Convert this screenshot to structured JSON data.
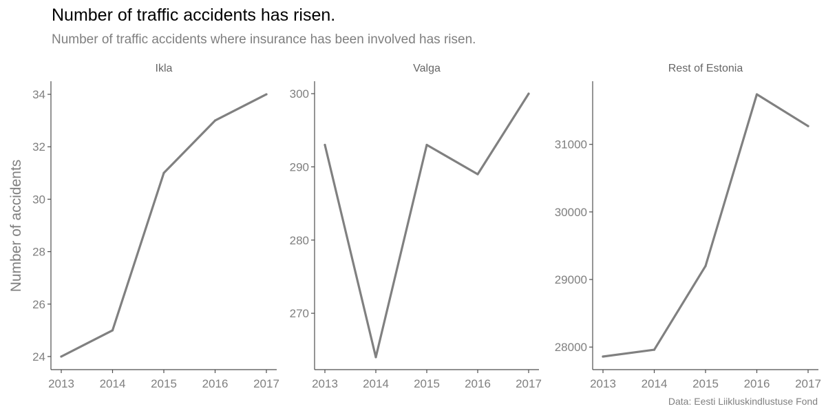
{
  "title": "Number of traffic accidents has risen.",
  "subtitle": "Number of traffic accidents where insurance has been involved has risen.",
  "caption": "Data: Eesti Liikluskindlustuse Fond",
  "colors": {
    "line": "#808080",
    "axis": "#4d4d4d",
    "tick_text": "#7f7f7f",
    "strip_text": "#666666"
  },
  "chart_data": {
    "type": "line",
    "ylabel": "Number of accidents",
    "xlabel": "",
    "grid": false,
    "shared_x": [
      2013,
      2014,
      2015,
      2016,
      2017
    ],
    "panels": [
      {
        "name": "Ikla",
        "x": [
          2013,
          2014,
          2015,
          2016,
          2017
        ],
        "values": [
          24,
          25,
          31,
          33,
          34
        ],
        "ylim": [
          23.5,
          34.5
        ],
        "yticks": [
          24,
          26,
          28,
          30,
          32,
          34
        ]
      },
      {
        "name": "Valga",
        "x": [
          2013,
          2014,
          2015,
          2016,
          2017
        ],
        "values": [
          293,
          264,
          293,
          289,
          300
        ],
        "ylim": [
          262.3,
          301.7
        ],
        "yticks": [
          270,
          280,
          290,
          300
        ]
      },
      {
        "name": "Rest of Estonia",
        "x": [
          2013,
          2014,
          2015,
          2016,
          2017
        ],
        "values": [
          27860,
          27960,
          29200,
          31740,
          31270
        ],
        "ylim": [
          27666,
          31934
        ],
        "yticks": [
          28000,
          29000,
          30000,
          31000
        ]
      }
    ]
  }
}
